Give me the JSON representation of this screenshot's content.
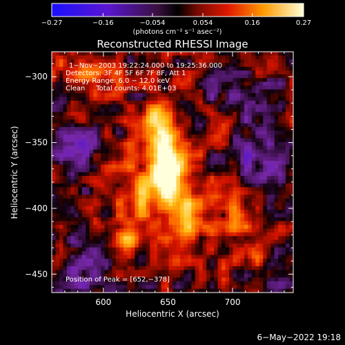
{
  "chart_data": {
    "type": "heatmap",
    "title": "Reconstructed RHESSI Image",
    "xlabel": "Heliocentric X (arcsec)",
    "ylabel": "Heliocentric Y (arcsec)",
    "xlim": [
      560,
      747
    ],
    "ylim": [
      -464,
      -281
    ],
    "x_ticks": [
      600,
      650,
      700
    ],
    "y_ticks": [
      -300,
      -350,
      -400,
      -450
    ],
    "x_tick_labels": [
      "600",
      "650",
      "700"
    ],
    "y_tick_labels": [
      "−300",
      "−350",
      "−400",
      "−450"
    ],
    "colorbar": {
      "min": -0.27,
      "max": 0.27,
      "ticks": [
        -0.27,
        -0.16,
        -0.054,
        0.054,
        0.16,
        0.27
      ],
      "tick_labels": [
        "−0.27",
        "−0.16",
        "−0.054",
        "0.054",
        "0.16",
        "0.27"
      ],
      "units_text": "(photons cm⁻² s⁻¹ asec⁻²)"
    },
    "annotations": [
      "1−Nov−2003 19:22:24.000 to 19:25:36.000",
      "Detectors: 3F 4F 5F 6F 7F 8F, Att 1",
      "Energy Range: 6.0 − 12.0 keV",
      "Clean     Total counts: 4.01E+03"
    ],
    "peak_label": "Position of Peak = [652,−378]",
    "peak": [
      652,
      -378
    ],
    "sources": [
      {
        "x": 652,
        "y": -378,
        "amp": 0.27,
        "sx": 9,
        "sy": 14
      },
      {
        "x": 646,
        "y": -352,
        "amp": 0.22,
        "sx": 10,
        "sy": 16
      },
      {
        "x": 640,
        "y": -330,
        "amp": 0.12,
        "sx": 9,
        "sy": 9
      },
      {
        "x": 628,
        "y": -392,
        "amp": 0.14,
        "sx": 9,
        "sy": 12
      },
      {
        "x": 617,
        "y": -420,
        "amp": 0.13,
        "sx": 8,
        "sy": 10
      },
      {
        "x": 662,
        "y": -403,
        "amp": 0.13,
        "sx": 11,
        "sy": 11
      },
      {
        "x": 664,
        "y": -423,
        "amp": 0.09,
        "sx": 9,
        "sy": 9
      },
      {
        "x": 578,
        "y": -296,
        "amp": 0.08,
        "sx": 12,
        "sy": 10
      },
      {
        "x": 615,
        "y": -300,
        "amp": 0.07,
        "sx": 10,
        "sy": 9
      },
      {
        "x": 700,
        "y": -412,
        "amp": 0.07,
        "sx": 10,
        "sy": 10
      },
      {
        "x": 688,
        "y": -395,
        "amp": 0.06,
        "sx": 10,
        "sy": 9
      },
      {
        "x": 720,
        "y": -438,
        "amp": 0.06,
        "sx": 9,
        "sy": 8
      },
      {
        "x": 612,
        "y": -362,
        "amp": 0.06,
        "sx": 8,
        "sy": 9
      },
      {
        "x": 690,
        "y": -345,
        "amp": 0.05,
        "sx": 8,
        "sy": 8
      },
      {
        "x": 580,
        "y": -352,
        "amp": -0.1,
        "sx": 14,
        "sy": 12
      },
      {
        "x": 585,
        "y": -440,
        "amp": -0.11,
        "sx": 14,
        "sy": 14
      },
      {
        "x": 722,
        "y": -360,
        "amp": -0.1,
        "sx": 14,
        "sy": 14
      },
      {
        "x": 712,
        "y": -318,
        "amp": -0.09,
        "sx": 14,
        "sy": 10
      },
      {
        "x": 735,
        "y": -450,
        "amp": -0.08,
        "sx": 10,
        "sy": 10
      },
      {
        "x": 690,
        "y": -300,
        "amp": -0.07,
        "sx": 10,
        "sy": 9
      }
    ]
  },
  "footer": {
    "date": "6−May−2022 19:18"
  },
  "colors": {
    "background": "#000000",
    "foreground": "#ffffff"
  }
}
